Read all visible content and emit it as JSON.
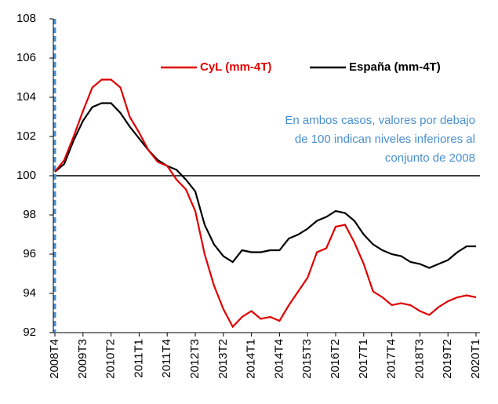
{
  "chart_data": {
    "type": "line",
    "categories": [
      "2008T4",
      null,
      null,
      "2009T3",
      null,
      null,
      "2010T2",
      null,
      null,
      "2011T1",
      null,
      null,
      "2011T4",
      null,
      null,
      "2012T3",
      null,
      null,
      "2013T2",
      null,
      null,
      "2014T1",
      null,
      null,
      "2014T4",
      null,
      null,
      "2015T3",
      null,
      null,
      "2016T2",
      null,
      null,
      "2017T1",
      null,
      null,
      "2017T4",
      null,
      null,
      "2018T3",
      null,
      null,
      "2019T2",
      null,
      null,
      "2020T1"
    ],
    "series": [
      {
        "name": "CyL (mm-4T)",
        "color": "#e00000",
        "values": [
          100.2,
          100.8,
          102.0,
          103.3,
          104.5,
          104.9,
          104.9,
          104.5,
          103.0,
          102.2,
          101.3,
          100.7,
          100.5,
          99.8,
          99.3,
          98.2,
          96.0,
          94.4,
          93.2,
          92.3,
          92.8,
          93.1,
          92.7,
          92.8,
          92.6,
          93.4,
          94.1,
          94.8,
          96.1,
          96.3,
          97.4,
          97.5,
          96.6,
          95.5,
          94.1,
          93.8,
          93.4,
          93.5,
          93.4,
          93.1,
          92.9,
          93.3,
          93.6,
          93.8,
          93.9,
          93.8
        ]
      },
      {
        "name": "España (mm-4T)",
        "color": "#000000",
        "values": [
          100.2,
          100.6,
          101.8,
          102.8,
          103.5,
          103.7,
          103.7,
          103.2,
          102.5,
          101.9,
          101.3,
          100.8,
          100.5,
          100.3,
          99.8,
          99.2,
          97.5,
          96.5,
          95.9,
          95.6,
          96.2,
          96.1,
          96.1,
          96.2,
          96.2,
          96.8,
          97.0,
          97.3,
          97.7,
          97.9,
          98.2,
          98.1,
          97.7,
          97.0,
          96.5,
          96.2,
          96.0,
          95.9,
          95.6,
          95.5,
          95.3,
          95.5,
          95.7,
          96.1,
          96.4,
          96.4
        ]
      }
    ],
    "ylim": [
      92,
      108
    ],
    "yticks": [
      92,
      94,
      96,
      98,
      100,
      102,
      104,
      106,
      108
    ],
    "reference_line": 100,
    "annotation": [
      "En ambos casos, valores por debajo",
      "de 100 indican niveles inferiores al",
      "conjunto de 2008"
    ],
    "annotation_color": "#4a8fcf",
    "legend": "top-right",
    "grid": false
  }
}
